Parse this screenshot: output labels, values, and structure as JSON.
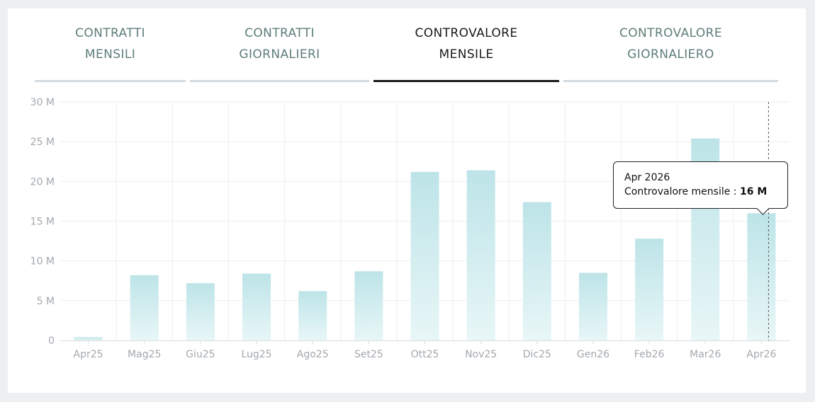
{
  "tabs": [
    {
      "label": "CONTRATTI\nMENSILI",
      "active": false
    },
    {
      "label": "CONTRATTI\nGIORNALIERI",
      "active": false
    },
    {
      "label": "CONTROVALORE\nMENSILE",
      "active": true
    },
    {
      "label": "CONTROVALORE\nGIORNALIERO",
      "active": false
    }
  ],
  "tooltip": {
    "title": "Apr 2026",
    "label": "Controvalore mensile : ",
    "value": "16 M"
  },
  "chart_data": {
    "type": "bar",
    "categories": [
      "Apr25",
      "Mag25",
      "Giu25",
      "Lug25",
      "Ago25",
      "Set25",
      "Ott25",
      "Nov25",
      "Dic25",
      "Gen26",
      "Feb26",
      "Mar26",
      "Apr26"
    ],
    "series": [
      {
        "name": "Controvalore mensile",
        "values": [
          0.4,
          8.2,
          7.2,
          8.4,
          6.2,
          8.7,
          21.2,
          21.4,
          17.4,
          8.5,
          12.8,
          25.4,
          16
        ]
      }
    ],
    "ylim": [
      0,
      30
    ],
    "yticks": [
      0,
      5,
      10,
      15,
      20,
      25,
      30
    ],
    "ytick_labels": [
      "0",
      "5 M",
      "10 M",
      "15 M",
      "20 M",
      "25 M",
      "30 M"
    ],
    "grid": true,
    "highlight_index": 12,
    "colors": {
      "bar_top": "#bde4e8",
      "bar_bottom": "#e8f6f7",
      "grid": "#ebedef",
      "axis": "#d7dce0"
    }
  }
}
